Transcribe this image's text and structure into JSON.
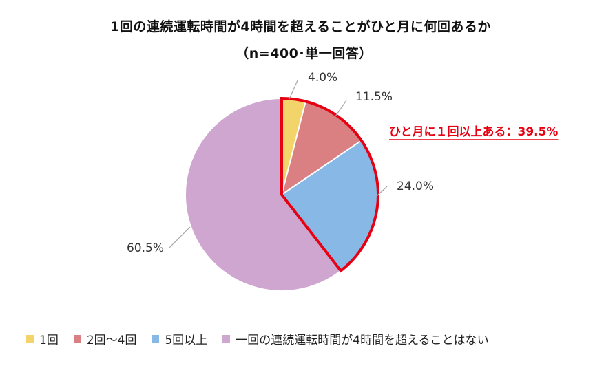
{
  "chart_data": {
    "type": "pie",
    "title": "1回の連続運転時間が4時間を超えることがひと月に何回あるか",
    "subtitle": "（n=400･単一回答）",
    "categories": [
      "1回",
      "2回～4回",
      "5回以上",
      "一回の連続運転時間が4時間を超えることはない"
    ],
    "values": [
      4.0,
      11.5,
      24.0,
      60.5
    ],
    "data_labels": [
      "4.0%",
      "11.5%",
      "24.0%",
      "60.5%"
    ],
    "colors": [
      "#f3d46a",
      "#da7f82",
      "#87b8e6",
      "#cfa6cf"
    ],
    "legend_position": "bottom",
    "annotation": "ひと月に１回以上ある：39.5%",
    "annotation_color": "#e60012",
    "highlight_series": [
      "1回",
      "2回～4回",
      "5回以上"
    ],
    "highlight_color": "#e60012"
  }
}
